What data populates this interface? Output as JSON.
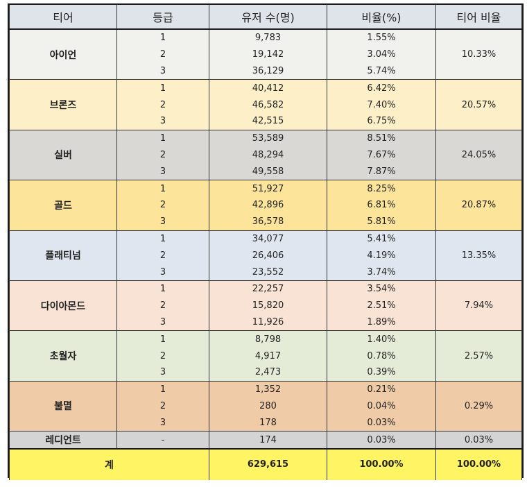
{
  "headers": [
    "티어",
    "등급",
    "유저 수(명)",
    "비율(%)",
    "티어 비율"
  ],
  "tiers": [
    {
      "name": "아이언",
      "color": "#f1f1ee",
      "ratio": "10.33%",
      "rows": [
        [
          "1",
          "9,783",
          "1.55%"
        ],
        [
          "2",
          "19,142",
          "3.04%"
        ],
        [
          "3",
          "36,129",
          "5.74%"
        ]
      ]
    },
    {
      "name": "브론즈",
      "color": "#fdf0c9",
      "ratio": "20.57%",
      "rows": [
        [
          "1",
          "40,412",
          "6.42%"
        ],
        [
          "2",
          "46,582",
          "7.40%"
        ],
        [
          "3",
          "42,515",
          "6.75%"
        ]
      ]
    },
    {
      "name": "실버",
      "color": "#d9d8d5",
      "ratio": "24.05%",
      "rows": [
        [
          "1",
          "53,589",
          "8.51%"
        ],
        [
          "2",
          "48,294",
          "7.67%"
        ],
        [
          "3",
          "49,558",
          "7.87%"
        ]
      ]
    },
    {
      "name": "골드",
      "color": "#fce49a",
      "ratio": "20.87%",
      "rows": [
        [
          "1",
          "51,927",
          "8.25%"
        ],
        [
          "2",
          "42,896",
          "6.81%"
        ],
        [
          "3",
          "36,578",
          "5.81%"
        ]
      ]
    },
    {
      "name": "플래티넘",
      "color": "#e0e6ef",
      "ratio": "13.35%",
      "rows": [
        [
          "1",
          "34,077",
          "5.41%"
        ],
        [
          "2",
          "26,406",
          "4.19%"
        ],
        [
          "3",
          "23,552",
          "3.74%"
        ]
      ]
    },
    {
      "name": "다이아몬드",
      "color": "#f8e3d4",
      "ratio": "7.94%",
      "rows": [
        [
          "1",
          "22,257",
          "3.54%"
        ],
        [
          "2",
          "15,820",
          "2.51%"
        ],
        [
          "3",
          "11,926",
          "1.89%"
        ]
      ]
    },
    {
      "name": "초월자",
      "color": "#e4ecd8",
      "ratio": "2.57%",
      "rows": [
        [
          "1",
          "8,798",
          "1.40%"
        ],
        [
          "2",
          "4,917",
          "0.78%"
        ],
        [
          "3",
          "2,473",
          "0.39%"
        ]
      ]
    },
    {
      "name": "불멸",
      "color": "#f0cba8",
      "ratio": "0.29%",
      "rows": [
        [
          "1",
          "1,352",
          "0.21%"
        ],
        [
          "2",
          "280",
          "0.04%"
        ],
        [
          "3",
          "178",
          "0.03%"
        ]
      ]
    },
    {
      "name": "레디언트",
      "color": "#d4d4d4",
      "ratio": "0.03%",
      "rows": [
        [
          "-",
          "174",
          "0.03%"
        ]
      ]
    }
  ],
  "total": {
    "label": "계",
    "users": "629,615",
    "ratio": "100.00%",
    "tier_ratio": "100.00%"
  }
}
